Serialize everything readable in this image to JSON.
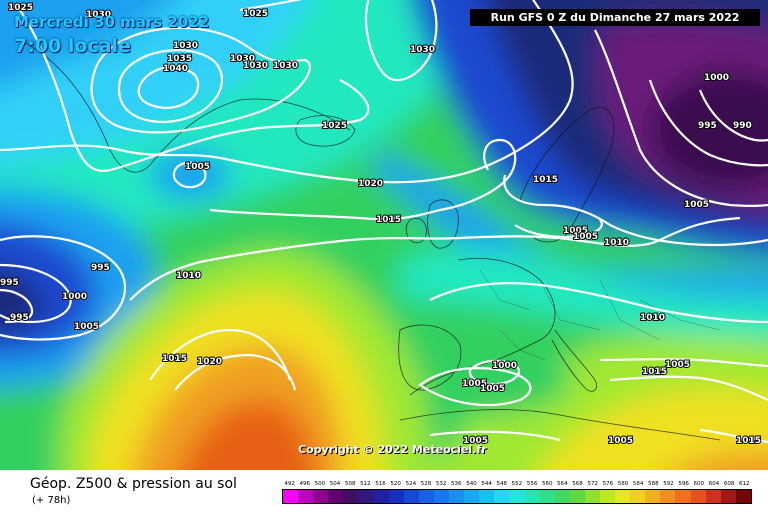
{
  "header": {
    "date": "Mercredi 30 mars 2022",
    "local_time": "7:00 locale",
    "run": "Run GFS 0 Z du Dimanche 27 mars 2022"
  },
  "copyright": "Copyright © 2022 Meteociel.fr",
  "footer": {
    "title": "Géop. Z500 & pression au sol",
    "subtitle": "(+ 78h)"
  },
  "colors": {
    "deep_purple": "#3a0850",
    "purple": "#6a1a7a",
    "navy": "#1a2a7a",
    "blue": "#1a4ad0",
    "sky": "#1aa0f0",
    "cyan": "#30d0f8",
    "aqua": "#20e8c0",
    "green": "#30d060",
    "lime": "#a0e830",
    "yellow": "#f0e020",
    "orange": "#f0a020",
    "dark_orange": "#e86018"
  },
  "scale": {
    "values": [
      "492",
      "496",
      "500",
      "504",
      "508",
      "512",
      "516",
      "520",
      "524",
      "528",
      "532",
      "536",
      "540",
      "544",
      "548",
      "552",
      "556",
      "560",
      "564",
      "568",
      "572",
      "576",
      "580",
      "584",
      "588",
      "592",
      "596",
      "600",
      "604",
      "608",
      "612"
    ],
    "colors": [
      "#ff00ff",
      "#c000c0",
      "#900090",
      "#600070",
      "#401060",
      "#301880",
      "#2020a0",
      "#1830c0",
      "#1848d8",
      "#1860e8",
      "#1878f0",
      "#1890f0",
      "#18a8f0",
      "#18c0f0",
      "#20d8f0",
      "#20e8d8",
      "#20e8b0",
      "#30e088",
      "#40d860",
      "#60d840",
      "#90e030",
      "#c0e820",
      "#e8e820",
      "#f0d020",
      "#f0b020",
      "#f09020",
      "#f07020",
      "#e85020",
      "#d03020",
      "#a01818",
      "#700808"
    ]
  },
  "isobar_labels": [
    {
      "text": "1025"
    },
    {
      "text": "1025"
    },
    {
      "text": "1030"
    },
    {
      "text": "1030"
    },
    {
      "text": "1035"
    },
    {
      "text": "1040"
    },
    {
      "text": "1030"
    },
    {
      "text": "1030"
    },
    {
      "text": "1030"
    },
    {
      "text": "1030"
    },
    {
      "text": "1025"
    },
    {
      "text": "1005"
    },
    {
      "text": "1020"
    },
    {
      "text": "1015"
    },
    {
      "text": "1015"
    },
    {
      "text": "1005"
    },
    {
      "text": "1005"
    },
    {
      "text": "1010"
    },
    {
      "text": "1000"
    },
    {
      "text": "995"
    },
    {
      "text": "990"
    },
    {
      "text": "1005"
    },
    {
      "text": "995"
    },
    {
      "text": "995"
    },
    {
      "text": "1000"
    },
    {
      "text": "995"
    },
    {
      "text": "1005"
    },
    {
      "text": "1010"
    },
    {
      "text": "1015"
    },
    {
      "text": "1020"
    },
    {
      "text": "1010"
    },
    {
      "text": "1000"
    },
    {
      "text": "1005"
    },
    {
      "text": "1005"
    },
    {
      "text": "1005"
    },
    {
      "text": "1015"
    },
    {
      "text": "1005"
    },
    {
      "text": "1005"
    },
    {
      "text": "1015"
    }
  ]
}
